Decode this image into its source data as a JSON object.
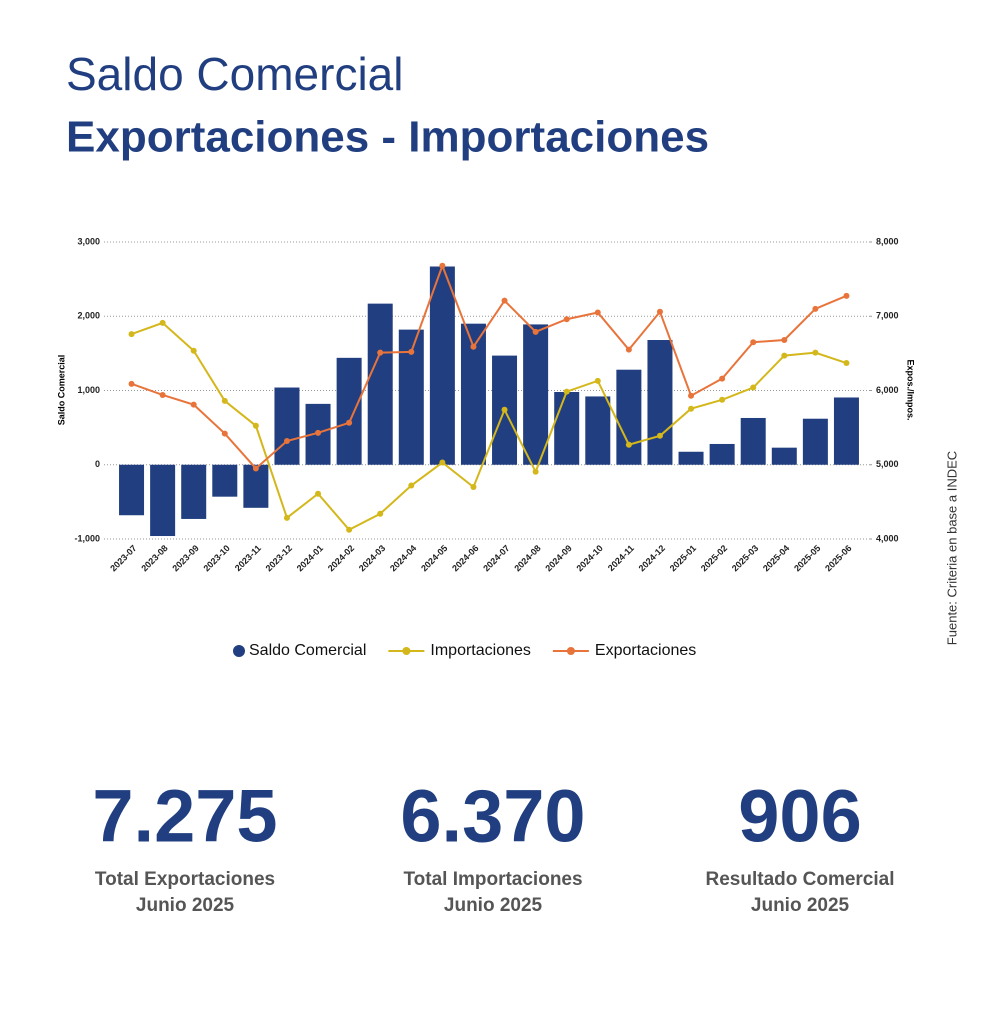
{
  "header": {
    "title": "Saldo Comercial",
    "subtitle": "Exportaciones - Importaciones"
  },
  "chart_data": {
    "type": "combo",
    "categories": [
      "2023-07",
      "2023-08",
      "2023-09",
      "2023-10",
      "2023-11",
      "2023-12",
      "2024-01",
      "2024-02",
      "2024-03",
      "2024-04",
      "2024-05",
      "2024-06",
      "2024-07",
      "2024-08",
      "2024-09",
      "2024-10",
      "2024-11",
      "2024-12",
      "2025-01",
      "2025-02",
      "2025-03",
      "2025-04",
      "2025-05",
      "2025-06"
    ],
    "y_label": "Saldo Comercial",
    "y2_label": "Expos./Impos.",
    "ylim": [
      -1000,
      3000
    ],
    "yticks": [
      {
        "value": -1000,
        "label": "-1,000"
      },
      0,
      {
        "value": 1000,
        "label": "1,000"
      },
      {
        "value": 2000,
        "label": "2,000"
      },
      {
        "value": 3000,
        "label": "3,000"
      }
    ],
    "y2lim": [
      4000,
      8000
    ],
    "y2ticks": [
      {
        "value": 4000,
        "label": "4,000"
      },
      {
        "value": 5000,
        "label": "5,000"
      },
      {
        "value": 6000,
        "label": "6,000"
      },
      {
        "value": 7000,
        "label": "7,000"
      },
      {
        "value": 8000,
        "label": "8,000"
      }
    ],
    "grid": true,
    "legend": "bottom",
    "series": [
      {
        "name": "Saldo Comercial",
        "type": "bar",
        "color": "#213f80",
        "values": [
          -680,
          -960,
          -730,
          -430,
          -580,
          1040,
          820,
          1440,
          2170,
          1820,
          2670,
          1900,
          1470,
          1890,
          980,
          920,
          1280,
          1680,
          175,
          280,
          630,
          230,
          620,
          906
        ]
      },
      {
        "name": "Importaciones",
        "type": "line",
        "axis": "y2",
        "color": "#d4b71a",
        "values": [
          6760,
          6910,
          6535,
          5860,
          5525,
          4285,
          4610,
          4125,
          4340,
          4720,
          5030,
          4700,
          5740,
          4905,
          5985,
          6130,
          5270,
          5390,
          5755,
          5875,
          6040,
          6470,
          6510,
          6370
        ]
      },
      {
        "name": "Exportaciones",
        "type": "line",
        "axis": "y2",
        "color": "#e8743b",
        "values": [
          6090,
          5940,
          5810,
          5420,
          4950,
          5320,
          5430,
          5565,
          6510,
          6520,
          7680,
          6590,
          7210,
          6790,
          6960,
          7050,
          6550,
          7060,
          5930,
          6160,
          6650,
          6680,
          7100,
          7275
        ]
      }
    ]
  },
  "stats": [
    {
      "value": "7.275",
      "label": "Total Exportaciones",
      "period": "Junio 2025"
    },
    {
      "value": "6.370",
      "label": "Total Importaciones",
      "period": "Junio 2025"
    },
    {
      "value": "906",
      "label": "Resultado Comercial",
      "period": "Junio 2025"
    }
  ],
  "source": "Fuente: Criteria en base a INDEC"
}
